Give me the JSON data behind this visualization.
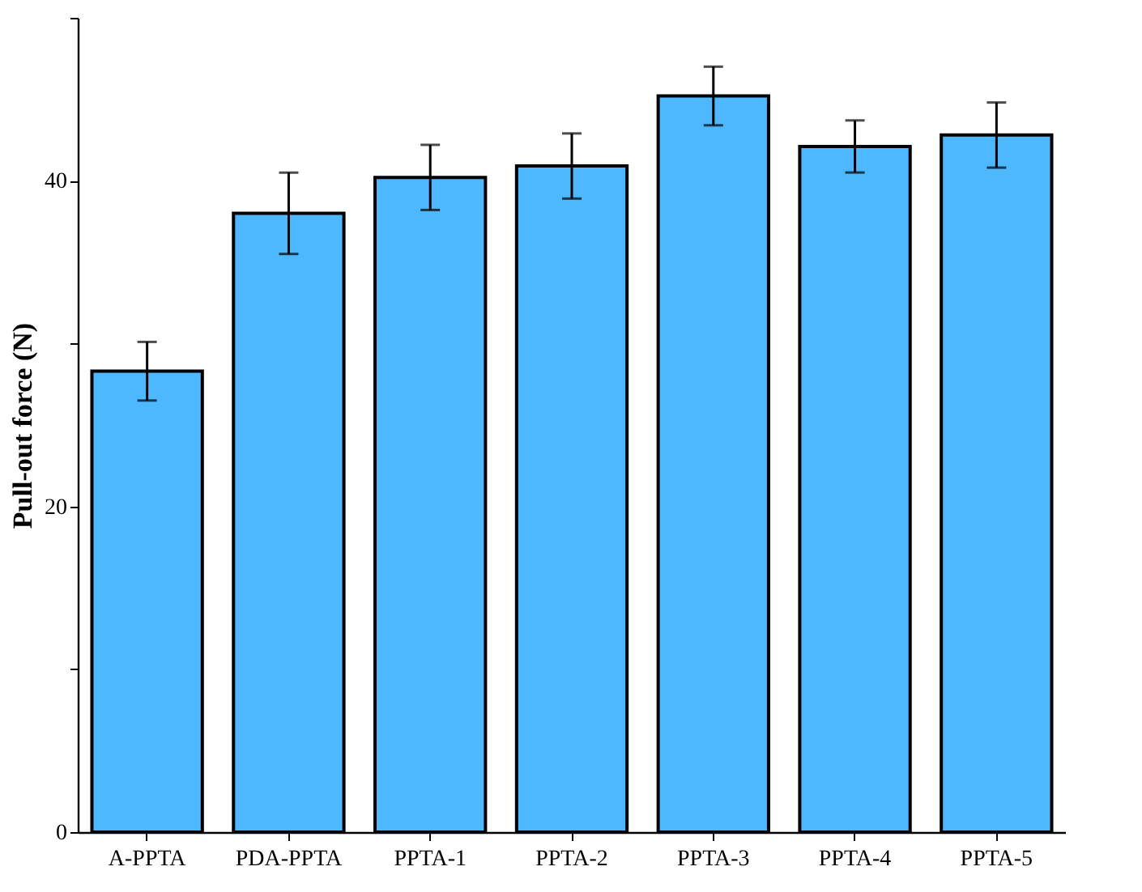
{
  "chart_data": {
    "type": "bar",
    "ylabel": "Pull-out force (N)",
    "categories": [
      "A-PPTA",
      "PDA-PPTA",
      "PPTA-1",
      "PPTA-2",
      "PPTA-3",
      "PPTA-4",
      "PPTA-5"
    ],
    "values": [
      28.3,
      38.0,
      40.2,
      40.9,
      45.2,
      42.1,
      42.8
    ],
    "errors": [
      1.8,
      2.5,
      2.0,
      2.0,
      1.8,
      1.6,
      2.0
    ],
    "color": "#4db8ff",
    "ylim": [
      0,
      50
    ],
    "yticks": [
      0,
      {
        "value": 10,
        "label": null
      },
      20,
      {
        "value": 30,
        "label": null
      },
      40,
      {
        "value": 50,
        "label": null
      }
    ],
    "grid": false
  }
}
